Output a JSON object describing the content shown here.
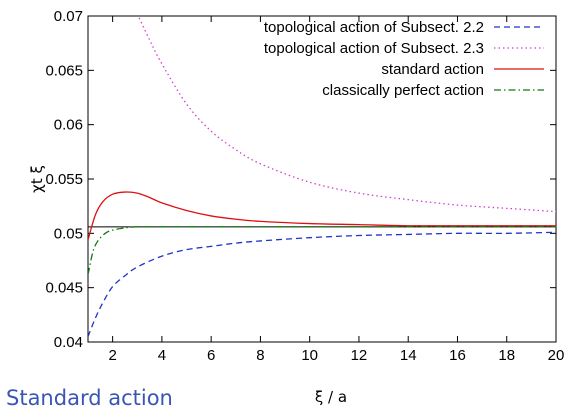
{
  "caption": "Standard action",
  "chart_data": {
    "type": "line",
    "xlabel": "ξ / a",
    "ylabel": "χt ξ",
    "xlim": [
      1,
      20
    ],
    "ylim": [
      0.04,
      0.07
    ],
    "xticks": [
      "2",
      "4",
      "6",
      "8",
      "10",
      "12",
      "14",
      "16",
      "18",
      "20"
    ],
    "yticks": [
      "0.04",
      "0.045",
      "0.05",
      "0.055",
      "0.06",
      "0.065",
      "0.07"
    ],
    "legend_position": "top-right",
    "grid": false,
    "reference_line": {
      "y": 0.0506,
      "color": "#000000"
    },
    "series": [
      {
        "name": "topological action of Subsect. 2.2",
        "color": "#2233cc",
        "dash": "dashed",
        "x": [
          1.0,
          1.3,
          1.6,
          2.0,
          2.5,
          3.0,
          4.0,
          5.0,
          6.0,
          7.0,
          8.0,
          10.0,
          12.0,
          14.0,
          16.0,
          18.0,
          20.0
        ],
        "y": [
          0.0405,
          0.0422,
          0.0436,
          0.0451,
          0.0461,
          0.0469,
          0.0479,
          0.0485,
          0.0488,
          0.0491,
          0.0493,
          0.0496,
          0.0498,
          0.0499,
          0.05,
          0.05,
          0.0501
        ]
      },
      {
        "name": "topological action of Subsect. 2.3",
        "color": "#d040d0",
        "dash": "dotted",
        "x": [
          3.0,
          3.5,
          4.0,
          5.0,
          6.0,
          7.0,
          8.0,
          10.0,
          12.0,
          14.0,
          16.0,
          18.0,
          20.0
        ],
        "y": [
          0.0702,
          0.0678,
          0.0656,
          0.0619,
          0.0594,
          0.0577,
          0.0564,
          0.0547,
          0.0537,
          0.0531,
          0.0526,
          0.0523,
          0.052
        ]
      },
      {
        "name": "standard action",
        "color": "#dd1111",
        "dash": "solid",
        "x": [
          1.0,
          1.3,
          1.6,
          2.0,
          2.5,
          3.0,
          3.5,
          4.0,
          5.0,
          6.0,
          7.0,
          8.0,
          10.0,
          12.0,
          14.0,
          16.0,
          18.0,
          20.0
        ],
        "y": [
          0.0494,
          0.0517,
          0.0529,
          0.0536,
          0.0538,
          0.0537,
          0.0533,
          0.0528,
          0.0521,
          0.0516,
          0.0513,
          0.0511,
          0.0509,
          0.0508,
          0.0507,
          0.0507,
          0.0507,
          0.0507
        ]
      },
      {
        "name": "classically perfect action",
        "color": "#117711",
        "dash": "dashdot",
        "x": [
          1.0,
          1.2,
          1.4,
          1.7,
          2.0,
          2.5,
          3.0,
          4.0,
          5.0,
          6.0,
          8.0,
          10.0,
          14.0,
          20.0
        ],
        "y": [
          0.0462,
          0.0483,
          0.0493,
          0.05,
          0.0503,
          0.0505,
          0.0506,
          0.0506,
          0.0506,
          0.0506,
          0.0506,
          0.0506,
          0.0506,
          0.0506
        ]
      }
    ]
  }
}
